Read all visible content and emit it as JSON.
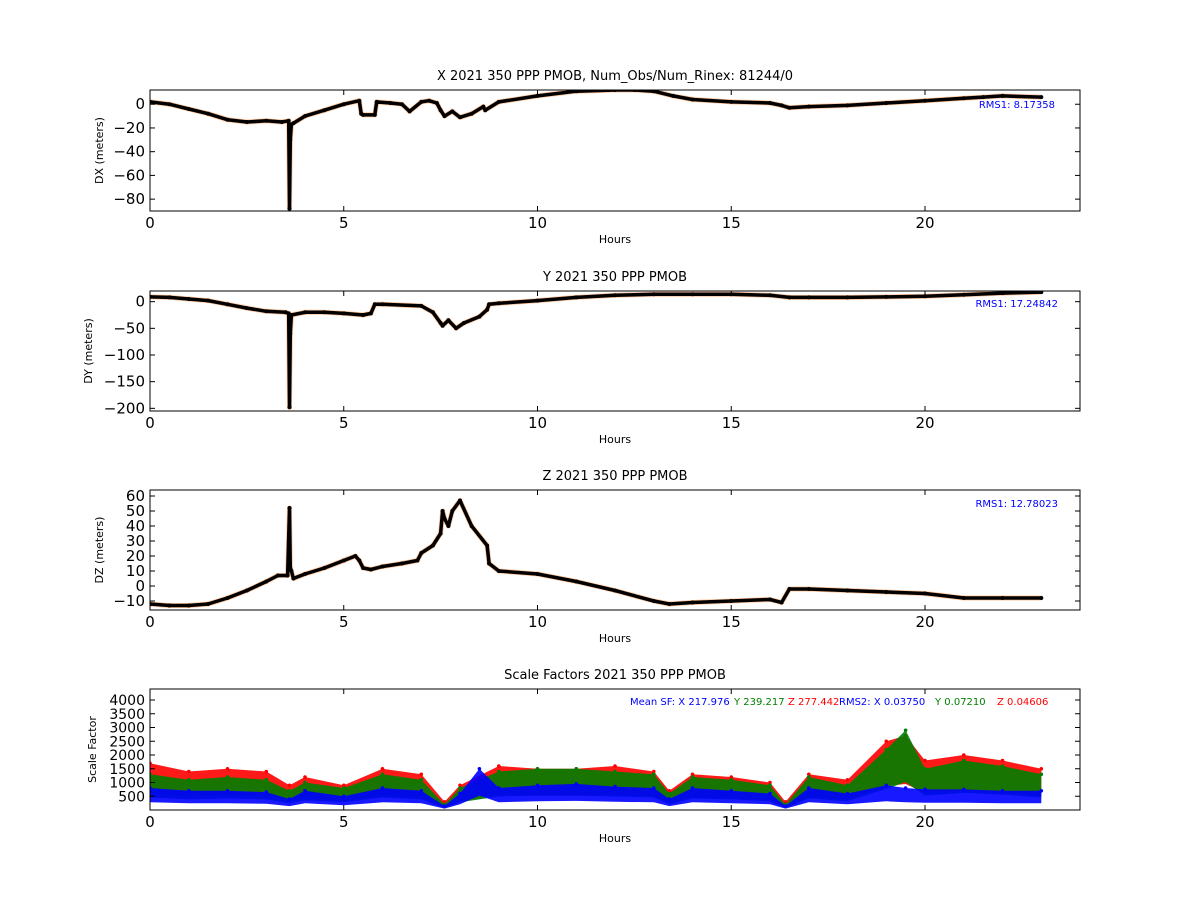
{
  "chart_data": [
    {
      "type": "scatter",
      "title": "X 2021 350 PPP  PMOB, Num_Obs/Num_Rinex: 81244/0",
      "xlabel": "Hours",
      "ylabel": "DX (meters)",
      "xlim": [
        0,
        24
      ],
      "ylim": [
        -90,
        12
      ],
      "xticks": [
        "0",
        "5",
        "10",
        "15",
        "20"
      ],
      "yticks": [
        "0",
        "−20",
        "−40",
        "−60",
        "−80"
      ],
      "ytick_values": [
        0,
        -20,
        -40,
        -60,
        -80
      ],
      "annotation": "RMS1:  8.17358",
      "annotation_color": "#0000ff",
      "grid": false,
      "series": [
        {
          "color": "#000000",
          "x": [
            0,
            0.5,
            1,
            1.5,
            2,
            2.5,
            3,
            3.4,
            3.58,
            3.6,
            3.62,
            3.65,
            3.7,
            4,
            4.5,
            5,
            5.4,
            5.45,
            5.5,
            5.8,
            5.85,
            6.2,
            6.5,
            6.7,
            7,
            7.2,
            7.4,
            7.5,
            7.6,
            7.8,
            8,
            8.3,
            8.6,
            8.65,
            9,
            10,
            11,
            12,
            12.5,
            13,
            13.5,
            14,
            15,
            16,
            16.3,
            16.5,
            17,
            18,
            19,
            20,
            21,
            21.5,
            22,
            23
          ],
          "y": [
            2,
            0,
            -4,
            -8,
            -13,
            -15,
            -14,
            -15,
            -14,
            -88,
            -30,
            -17,
            -16,
            -10,
            -5,
            0,
            3,
            -8,
            -9,
            -9,
            2,
            1,
            0,
            -6,
            2,
            3,
            1,
            -5,
            -10,
            -6,
            -11,
            -8,
            -2,
            -5,
            2,
            7,
            11,
            12,
            12,
            11,
            7,
            4,
            2,
            1,
            -1,
            -3,
            -2,
            -1,
            1,
            3,
            5,
            6,
            7,
            6
          ]
        }
      ]
    },
    {
      "type": "scatter",
      "title": "Y 2021 350 PPP  PMOB",
      "xlabel": "Hours",
      "ylabel": "DY (meters)",
      "xlim": [
        0,
        24
      ],
      "ylim": [
        -205,
        20
      ],
      "xticks": [
        "0",
        "5",
        "10",
        "15",
        "20"
      ],
      "yticks": [
        "0",
        "−50",
        "−100",
        "−150",
        "−200"
      ],
      "ytick_values": [
        0,
        -50,
        -100,
        -150,
        -200
      ],
      "annotation": "RMS1: 17.24842",
      "annotation_color": "#0000ff",
      "grid": false,
      "series": [
        {
          "color": "#000000",
          "x": [
            0,
            0.5,
            1,
            1.5,
            2,
            2.5,
            3,
            3.5,
            3.58,
            3.6,
            3.62,
            3.65,
            4,
            4.5,
            5,
            5.5,
            5.7,
            5.8,
            6,
            7,
            7.3,
            7.5,
            7.55,
            7.7,
            7.9,
            8.1,
            8.5,
            8.7,
            8.75,
            9,
            10,
            11,
            12,
            13,
            14,
            15,
            16,
            16.5,
            17,
            18,
            19,
            20,
            21,
            22,
            23
          ],
          "y": [
            9,
            8,
            5,
            2,
            -5,
            -12,
            -18,
            -20,
            -22,
            -198,
            -60,
            -25,
            -20,
            -20,
            -22,
            -25,
            -22,
            -5,
            -5,
            -8,
            -20,
            -40,
            -45,
            -35,
            -50,
            -40,
            -28,
            -15,
            -5,
            -3,
            2,
            8,
            12,
            14,
            14,
            14,
            12,
            8,
            8,
            8,
            9,
            10,
            13,
            16,
            18
          ]
        }
      ]
    },
    {
      "type": "scatter",
      "title": "Z 2021 350 PPP  PMOB",
      "xlabel": "Hours",
      "ylabel": "DZ (meters)",
      "xlim": [
        0,
        24
      ],
      "ylim": [
        -16,
        64
      ],
      "xticks": [
        "0",
        "5",
        "10",
        "15",
        "20"
      ],
      "yticks": [
        "60",
        "50",
        "40",
        "30",
        "20",
        "10",
        "0",
        "−10"
      ],
      "ytick_values": [
        60,
        50,
        40,
        30,
        20,
        10,
        0,
        -10
      ],
      "annotation": "RMS1: 12.78023",
      "annotation_color": "#0000ff",
      "grid": false,
      "series": [
        {
          "color": "#000000",
          "x": [
            0,
            0.5,
            1,
            1.5,
            2,
            2.5,
            3,
            3.3,
            3.55,
            3.6,
            3.62,
            3.65,
            3.7,
            4,
            4.5,
            5,
            5.3,
            5.4,
            5.5,
            5.7,
            6,
            6.5,
            6.9,
            7,
            7.3,
            7.5,
            7.55,
            7.6,
            7.7,
            7.8,
            8,
            8.3,
            8.7,
            8.75,
            9,
            10,
            11,
            12,
            13,
            13.4,
            14,
            15,
            16,
            16.3,
            16.5,
            17,
            18,
            19,
            20,
            21,
            22,
            23
          ],
          "y": [
            -12,
            -13,
            -13,
            -12,
            -8,
            -3,
            3,
            7,
            7,
            52,
            12,
            10,
            5,
            8,
            12,
            17,
            20,
            17,
            12,
            11,
            13,
            15,
            17,
            22,
            27,
            35,
            50,
            45,
            40,
            50,
            57,
            40,
            27,
            15,
            10,
            8,
            3,
            -3,
            -10,
            -12,
            -11,
            -10,
            -9,
            -11,
            -2,
            -2,
            -3,
            -4,
            -5,
            -8,
            -8,
            -8
          ]
        }
      ]
    },
    {
      "type": "scatter",
      "title": "Scale Factors 2021 350 PPP  PMOB",
      "xlabel": "Hours",
      "ylabel": "Scale Factor",
      "xlim": [
        0,
        24
      ],
      "ylim": [
        0,
        4400
      ],
      "xticks": [
        "0",
        "5",
        "10",
        "15",
        "20"
      ],
      "yticks": [
        "4000",
        "3500",
        "3000",
        "2500",
        "2000",
        "1500",
        "1000",
        "500"
      ],
      "ytick_values": [
        4000,
        3500,
        3000,
        2500,
        2000,
        1500,
        1000,
        500
      ],
      "grid": false,
      "annotations": [
        {
          "text": "Mean SF: X 217.976",
          "color": "#0000ff"
        },
        {
          "text": "Y 239.217",
          "color": "#008000"
        },
        {
          "text": "Z 277.442",
          "color": "#ff0000"
        },
        {
          "text": "RMS2: X  0.03750",
          "color": "#0000ff"
        },
        {
          "text": "Y  0.07210",
          "color": "#008000"
        },
        {
          "text": "Z  0.04606",
          "color": "#ff0000"
        }
      ],
      "series": [
        {
          "name": "Z",
          "color": "#ff0000",
          "x": [
            0,
            1,
            2,
            3,
            3.6,
            4,
            5,
            6,
            7,
            7.6,
            8,
            9,
            10,
            11,
            12,
            13,
            13.4,
            14,
            15,
            16,
            16.4,
            17,
            18,
            19,
            19.5,
            20,
            21,
            22,
            23
          ],
          "y": [
            1700,
            1400,
            1500,
            1400,
            900,
            1200,
            900,
            1500,
            1300,
            300,
            900,
            1600,
            1500,
            1500,
            1600,
            1400,
            700,
            1300,
            1200,
            1000,
            300,
            1300,
            1100,
            2500,
            2700,
            1800,
            2000,
            1800,
            1500
          ]
        },
        {
          "name": "Y",
          "color": "#008000",
          "x": [
            0,
            1,
            2,
            3,
            3.6,
            4,
            5,
            6,
            7,
            7.6,
            8,
            9,
            10,
            11,
            12,
            13,
            13.4,
            14,
            15,
            16,
            16.4,
            17,
            18,
            19,
            19.5,
            20,
            21,
            22,
            23
          ],
          "y": [
            1300,
            1100,
            1200,
            1100,
            700,
            1000,
            800,
            1300,
            1100,
            200,
            800,
            1400,
            1500,
            1500,
            1400,
            1300,
            600,
            1200,
            1100,
            900,
            200,
            1200,
            900,
            2200,
            2900,
            1500,
            1800,
            1600,
            1300
          ]
        },
        {
          "name": "X",
          "color": "#0000ff",
          "x": [
            0,
            1,
            2,
            3,
            3.6,
            4,
            5,
            6,
            7,
            7.6,
            8,
            8.5,
            9,
            10,
            11,
            12,
            13,
            13.4,
            14,
            15,
            16,
            16.4,
            17,
            18,
            19,
            19.5,
            20,
            21,
            22,
            23
          ],
          "y": [
            800,
            700,
            700,
            650,
            400,
            700,
            500,
            800,
            700,
            150,
            600,
            1500,
            800,
            900,
            950,
            850,
            800,
            400,
            800,
            700,
            600,
            150,
            800,
            600,
            900,
            800,
            750,
            750,
            700,
            700
          ]
        }
      ]
    }
  ]
}
